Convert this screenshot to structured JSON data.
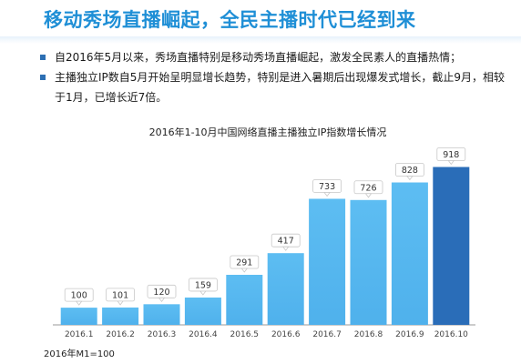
{
  "slide": {
    "title": "移动秀场直播崛起，全民主播时代已经到来",
    "bullets": [
      "自2016年5月以来，秀场直播特别是移动秀场直播崛起，激发全民素人的直播热情；",
      "主播独立IP数自5月开始呈明显增长趋势，特别是进入暑期后出现爆发式增长，截止9月，相较于1月，已增长近7倍。"
    ],
    "footnote": "2016年M1=100"
  },
  "colors": {
    "title": "#1f8fd6",
    "bar": "#4fb1ec",
    "bar_highlight": "#2a6db8",
    "bullet": "#2d6fb3"
  },
  "chart_data": {
    "type": "bar",
    "title": "2016年1-10月中国网络直播主播独立IP指数增长情况",
    "xlabel": "",
    "ylabel": "",
    "categories": [
      "2016.1",
      "2016.2",
      "2016.3",
      "2016.4",
      "2016.5",
      "2016.6",
      "2016.7",
      "2016.8",
      "2016.9",
      "2016.10"
    ],
    "values": [
      100,
      101,
      120,
      159,
      291,
      417,
      733,
      726,
      828,
      918
    ],
    "highlight_index": 9,
    "ylim": [
      0,
      1000
    ],
    "grid": false,
    "data_labels": true
  }
}
